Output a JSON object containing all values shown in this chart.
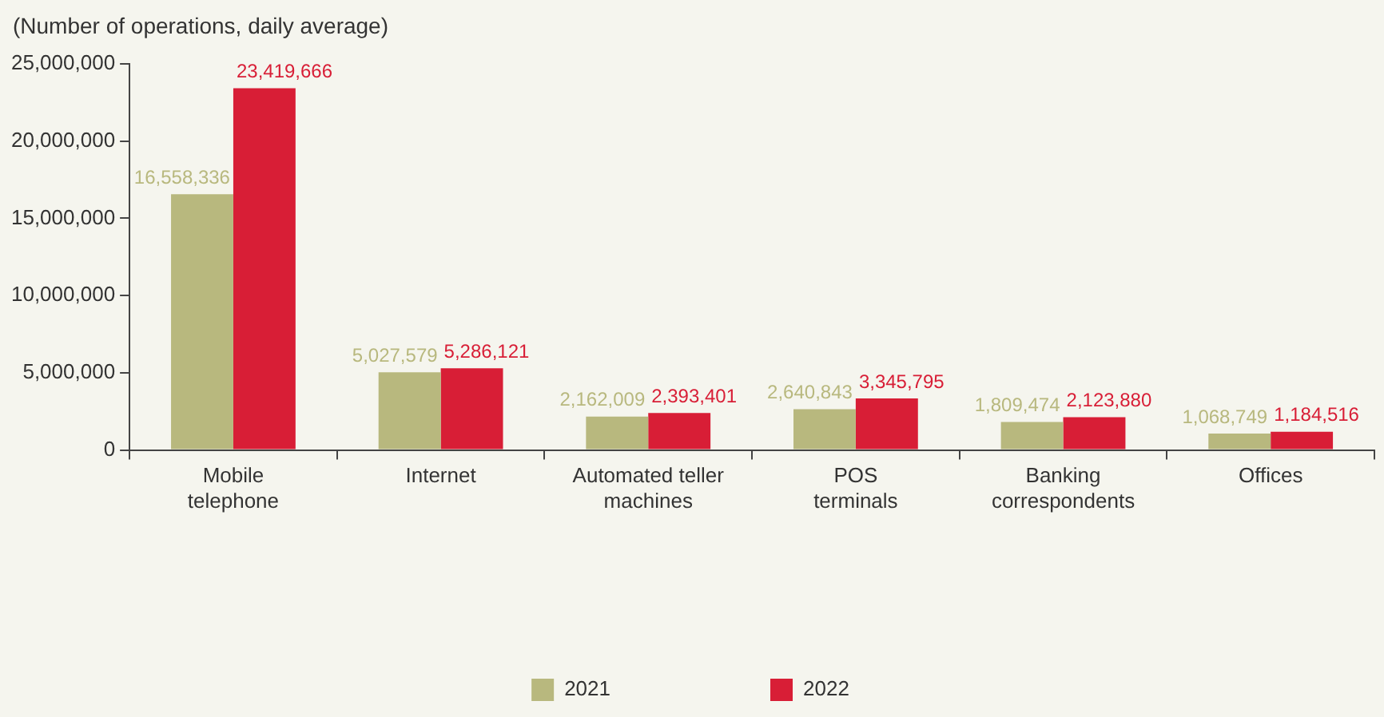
{
  "chart_data": {
    "type": "bar",
    "ylabel": "(Number of operations, daily average)",
    "categories": [
      "Mobile telephone",
      "Internet",
      "Automated teller machines",
      "POS terminals",
      "Banking correspondents",
      "Offices"
    ],
    "series": [
      {
        "name": "2021",
        "color": "#b8b87e",
        "values": [
          16558336,
          5027579,
          2162009,
          2640843,
          1809474,
          1068749
        ],
        "value_labels": [
          "16,558,336",
          "5,027,579",
          "2,162,009",
          "2,640,843",
          "1,809,474",
          "1,068,749"
        ]
      },
      {
        "name": "2022",
        "color": "#d81e36",
        "values": [
          23419666,
          5286121,
          2393401,
          3345795,
          2123880,
          1184516
        ],
        "value_labels": [
          "23,419,666",
          "5,286,121",
          "2,393,401",
          "3,345,795",
          "2,123,880",
          "1,184,516"
        ]
      }
    ],
    "ylim": [
      0,
      25000000
    ],
    "yticks": [
      0,
      {
        "value": 5000000,
        "label": "5,000,000"
      },
      {
        "value": 10000000,
        "label": "10,000,000"
      },
      {
        "value": 15000000,
        "label": "15,000,000"
      },
      {
        "value": 20000000,
        "label": "20,000,000"
      },
      {
        "value": 25000000,
        "label": "25,000,000"
      }
    ],
    "grid": false,
    "legend": "bottom"
  }
}
